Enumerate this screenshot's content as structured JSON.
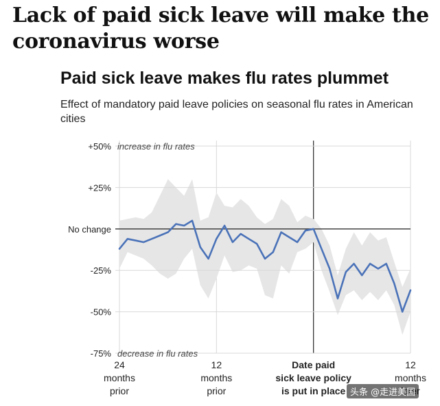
{
  "headline": "Lack of paid sick leave will make the coronavirus worse",
  "chart_data": {
    "type": "line",
    "title": "Paid sick leave makes flu rates plummet",
    "subtitle": "Effect of mandatory paid leave policies on seasonal flu rates in American cities",
    "y_ticks": [
      {
        "value": 50,
        "label": "+50%",
        "note": "increase in flu rates"
      },
      {
        "value": 25,
        "label": "+25%",
        "note": ""
      },
      {
        "value": 0,
        "label": "No change",
        "note": ""
      },
      {
        "value": -25,
        "label": "-25%",
        "note": ""
      },
      {
        "value": -50,
        "label": "-50%",
        "note": ""
      },
      {
        "value": -75,
        "label": "-75%",
        "note": "decrease in flu rates"
      }
    ],
    "ylim": [
      -75,
      50
    ],
    "xlim": [
      -24,
      12
    ],
    "x_ticks": [
      {
        "value": -24,
        "lines": [
          "24",
          "months",
          "prior"
        ],
        "bold": false
      },
      {
        "value": -12,
        "lines": [
          "12",
          "months",
          "prior"
        ],
        "bold": false
      },
      {
        "value": 0,
        "lines": [
          "Date paid",
          "sick leave policy",
          "is put in place"
        ],
        "bold": true
      },
      {
        "value": 12,
        "lines": [
          "12",
          "months",
          "later"
        ],
        "bold": false
      }
    ],
    "xlabel": "",
    "ylabel": "",
    "series": [
      {
        "x": [
          -24,
          -23,
          -22,
          -21,
          -20,
          -19,
          -18,
          -17,
          -16,
          -15,
          -14,
          -13,
          -12,
          -11,
          -10,
          -9,
          -8,
          -7,
          -6,
          -5,
          -4,
          -3,
          -2,
          -1,
          0,
          1,
          2,
          3,
          4,
          5,
          6,
          7,
          8,
          9,
          10,
          11,
          12
        ],
        "y": [
          -12,
          -6,
          -7,
          -8,
          -6,
          -4,
          -2,
          3,
          2,
          5,
          -11,
          -18,
          -6,
          2,
          -8,
          -3,
          -6,
          -9,
          -18,
          -14,
          -2,
          -5,
          -8,
          -1,
          0,
          -12,
          -24,
          -42,
          -26,
          -21,
          -28,
          -21,
          -24,
          -21,
          -33,
          -50,
          -37
        ],
        "lower": [
          -24,
          -14,
          -16,
          -18,
          -22,
          -27,
          -30,
          -27,
          -18,
          -12,
          -34,
          -42,
          -30,
          -16,
          -26,
          -25,
          -22,
          -24,
          -40,
          -42,
          -22,
          -27,
          -14,
          -12,
          -8,
          -25,
          -38,
          -52,
          -40,
          -37,
          -43,
          -38,
          -43,
          -37,
          -46,
          -64,
          -50
        ],
        "upper": [
          5,
          6,
          7,
          6,
          10,
          20,
          30,
          25,
          20,
          30,
          5,
          7,
          22,
          14,
          13,
          18,
          14,
          7,
          3,
          6,
          18,
          14,
          4,
          8,
          6,
          0,
          -10,
          -28,
          -12,
          -2,
          -10,
          -2,
          -7,
          -5,
          -20,
          -35,
          -24
        ],
        "color": "#4a72b8",
        "band_color": "#e6e6e6"
      }
    ],
    "grid": true
  },
  "watermark": "头条 @走进美国"
}
